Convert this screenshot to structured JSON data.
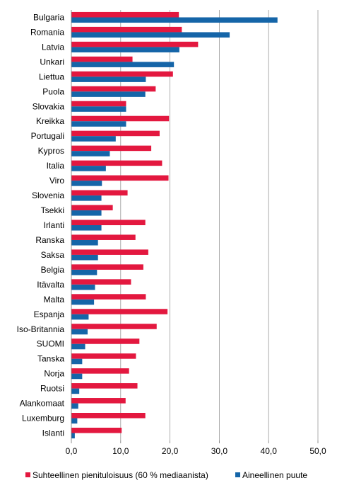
{
  "chart_data": {
    "type": "bar",
    "orientation": "horizontal",
    "categories": [
      "Bulgaria",
      "Romania",
      "Latvia",
      "Unkari",
      "Liettua",
      "Puola",
      "Slovakia",
      "Kreikka",
      "Portugali",
      "Kypros",
      "Italia",
      "Viro",
      "Slovenia",
      "Tsekki",
      "Irlanti",
      "Ranska",
      "Saksa",
      "Belgia",
      "Itävalta",
      "Malta",
      "Espanja",
      "Iso-Britannia",
      "SUOMI",
      "Tanska",
      "Norja",
      "Ruotsi",
      "Alankomaat",
      "Luxemburg",
      "Islanti"
    ],
    "series": [
      {
        "name": "Suhteellinen pienituloisuus (60 % mediaanista)",
        "color": "#e3183f",
        "values": [
          21.8,
          22.4,
          25.7,
          12.4,
          20.6,
          17.1,
          11.1,
          19.8,
          17.9,
          16.2,
          18.4,
          19.7,
          11.4,
          8.4,
          15.0,
          13.0,
          15.6,
          14.6,
          12.1,
          15.1,
          19.5,
          17.3,
          13.8,
          13.1,
          11.7,
          13.4,
          11.0,
          15.0,
          10.2
        ]
      },
      {
        "name": "Aineellinen puute",
        "color": "#1565a8",
        "values": [
          41.8,
          32.1,
          21.9,
          20.8,
          15.1,
          15.0,
          11.1,
          11.1,
          9.0,
          7.8,
          7.0,
          6.2,
          6.1,
          6.1,
          6.1,
          5.4,
          5.4,
          5.2,
          4.8,
          4.6,
          3.5,
          3.3,
          2.8,
          2.2,
          2.2,
          1.6,
          1.4,
          1.2,
          0.7
        ]
      }
    ],
    "xlim": [
      0,
      50
    ],
    "xticks": [
      "0,0",
      "10,0",
      "20,0",
      "30,0",
      "40,0",
      "50,0"
    ],
    "grid": true,
    "legend_position": "bottom"
  }
}
